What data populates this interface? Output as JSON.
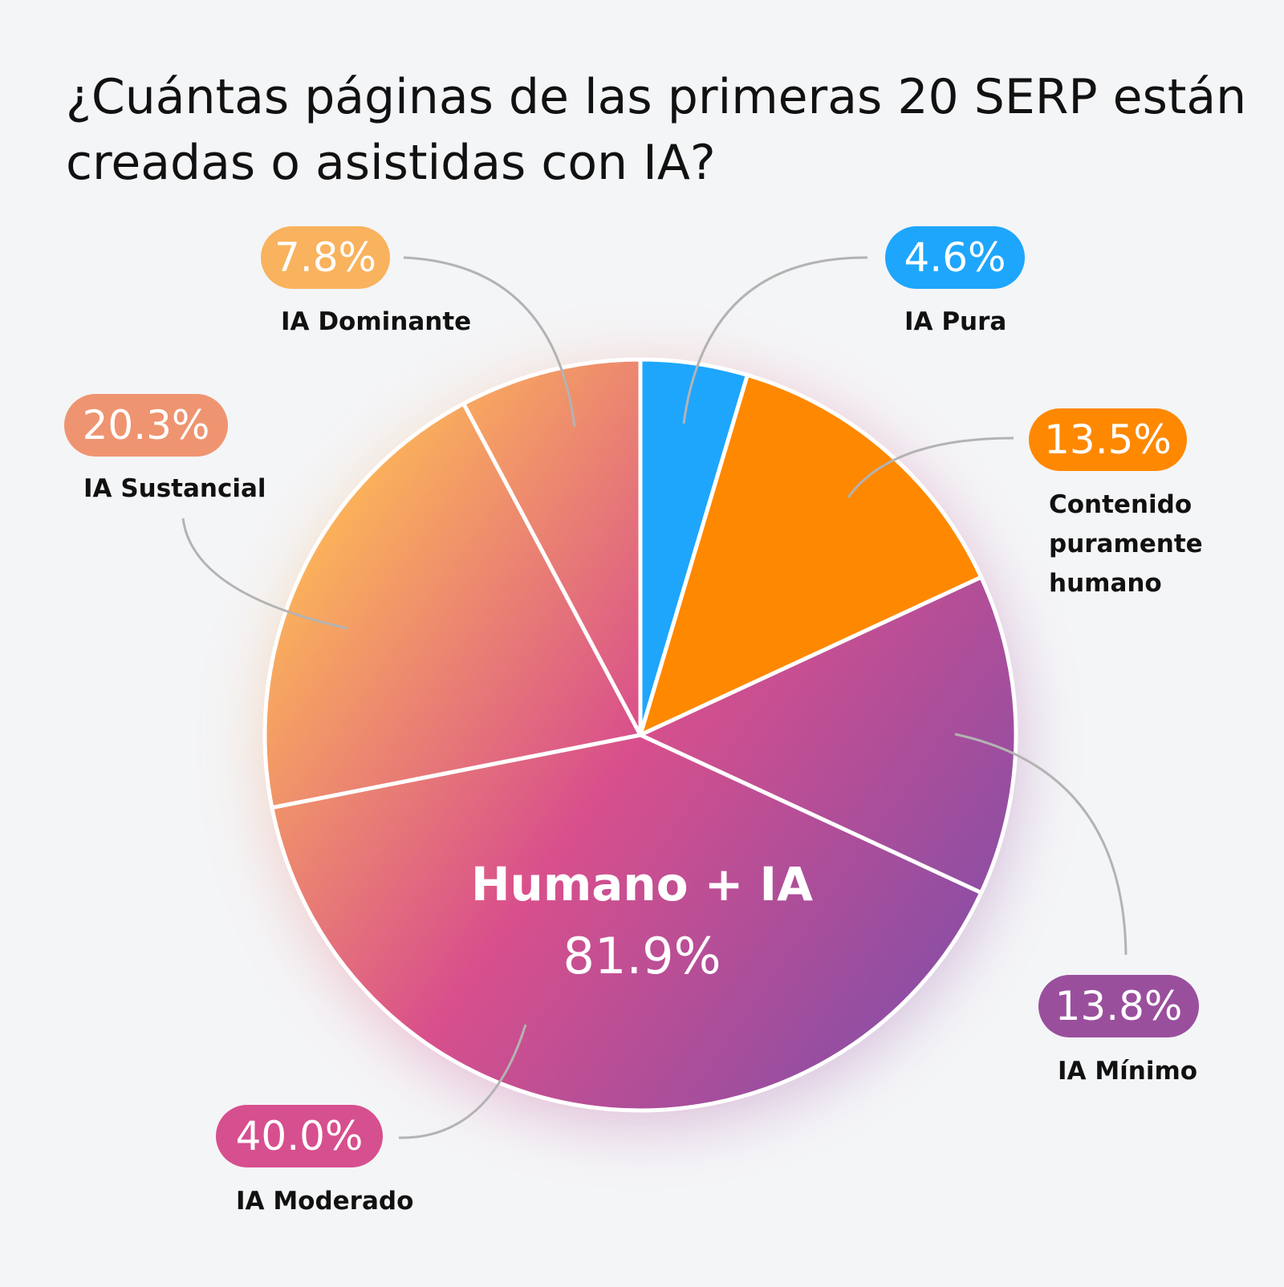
{
  "title": "¿Cuántas páginas de las primeras 20 SERP están creadas o asistidas con IA?",
  "chart_data": {
    "type": "pie",
    "title": "¿Cuántas páginas de las primeras 20 SERP están creadas o asistidas con IA?",
    "start": "top",
    "direction": "clockwise",
    "slices": [
      {
        "label": "IA Pura",
        "value": 4.6,
        "value_label": "4.6%",
        "color": "#1ea6fc"
      },
      {
        "label": "Contenido\npuramente\nhumano",
        "value": 13.5,
        "value_label": "13.5%",
        "color": "#fe8800"
      },
      {
        "label": "IA Mínimo",
        "value": 13.8,
        "value_label": "13.8%",
        "color": "#9a4f9d"
      },
      {
        "label": "IA Moderado",
        "value": 40.0,
        "value_label": "40.0%",
        "color": "#d64f8e"
      },
      {
        "label": "IA Sustancial",
        "value": 20.3,
        "value_label": "20.3%",
        "color": "#ef9470"
      },
      {
        "label": "IA Dominante",
        "value": 7.8,
        "value_label": "7.8%",
        "color": "#f9b25d"
      }
    ],
    "group_annotation": {
      "label": "Humano + IA",
      "value_label": "81.9%"
    },
    "gradient_colors": [
      "#fbb25a",
      "#d84f8c",
      "#8f4ea3"
    ]
  }
}
